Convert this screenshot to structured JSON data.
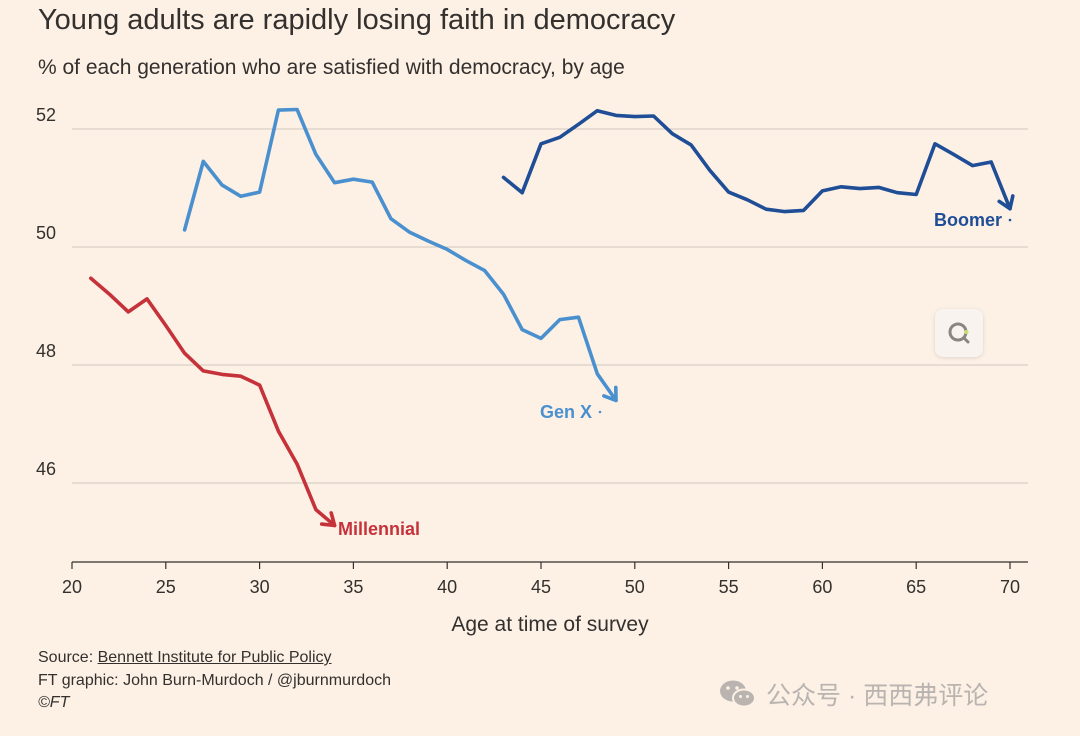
{
  "title": "Young adults are rapidly losing faith in democracy",
  "subtitle": "% of each generation who are satisfied with democracy, by age",
  "footer": {
    "source_prefix": "Source: ",
    "source_link": "Bennett Institute for Public Policy",
    "credit": "FT graphic: John Burn-Murdoch / @jburnmurdoch",
    "copyright": "©FT"
  },
  "watermark": {
    "text": "公众号 · 西西弗评论",
    "icon": "wechat-icon"
  },
  "colors": {
    "background": "#fdf1e6",
    "grid": "#cfc6bd",
    "axis": "#33302e",
    "millennial": "#c5323a",
    "genx": "#4a90cf",
    "boomer": "#1f4e96"
  },
  "chart_data": {
    "type": "line",
    "xlabel": "Age at time of survey",
    "ylabel": "",
    "xlim": [
      20,
      71
    ],
    "ylim": [
      44.7,
      53
    ],
    "x_ticks": [
      20,
      25,
      30,
      35,
      40,
      45,
      50,
      55,
      60,
      65,
      70
    ],
    "y_ticks": [
      46,
      48,
      50,
      52
    ],
    "grid": "horizontal",
    "series": [
      {
        "name": "Millennial",
        "color": "#c5323a",
        "x": [
          21,
          22,
          23,
          24,
          25,
          26,
          27,
          28,
          29,
          30,
          31,
          32,
          33,
          34
        ],
        "y": [
          49.47,
          49.2,
          48.9,
          49.12,
          48.67,
          48.2,
          47.9,
          47.84,
          47.81,
          47.66,
          46.88,
          46.32,
          45.55,
          45.28
        ]
      },
      {
        "name": "Gen X",
        "color": "#4a90cf",
        "x": [
          26,
          27,
          28,
          29,
          30,
          31,
          32,
          33,
          34,
          35,
          36,
          37,
          38,
          39,
          40,
          41,
          42,
          43,
          44,
          45,
          46,
          47,
          48,
          49
        ],
        "y": [
          50.29,
          51.45,
          51.05,
          50.86,
          50.93,
          52.32,
          52.33,
          51.57,
          51.09,
          51.15,
          51.1,
          50.48,
          50.25,
          50.1,
          49.96,
          49.77,
          49.6,
          49.2,
          48.6,
          48.45,
          48.77,
          48.81,
          47.85,
          47.4
        ]
      },
      {
        "name": "Boomer",
        "color": "#1f4e96",
        "x": [
          43,
          44,
          45,
          46,
          47,
          48,
          49,
          50,
          51,
          52,
          53,
          54,
          55,
          56,
          57,
          58,
          59,
          60,
          61,
          62,
          63,
          64,
          65,
          66,
          67,
          68,
          69,
          70
        ],
        "y": [
          51.18,
          50.92,
          51.75,
          51.86,
          52.08,
          52.31,
          52.23,
          52.21,
          52.22,
          51.92,
          51.73,
          51.3,
          50.93,
          50.8,
          50.64,
          50.6,
          50.62,
          50.95,
          51.02,
          50.99,
          51.01,
          50.92,
          50.89,
          51.75,
          51.57,
          51.38,
          51.44,
          50.65
        ]
      }
    ]
  }
}
